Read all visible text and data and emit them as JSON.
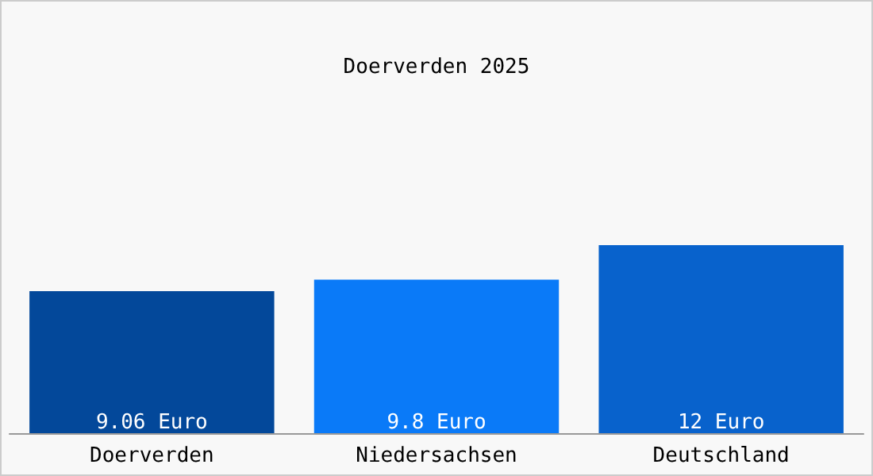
{
  "chart_data": {
    "type": "bar",
    "title": "Doerverden 2025",
    "categories": [
      "Doerverden",
      "Niedersachsen",
      "Deutschland"
    ],
    "values": [
      9.06,
      9.8,
      12
    ],
    "colors": [
      "#03489a",
      "#0a7af8",
      "#0862cc"
    ],
    "value_labels": [
      "9.06 Euro",
      "9.8 Euro",
      "12 Euro"
    ]
  }
}
